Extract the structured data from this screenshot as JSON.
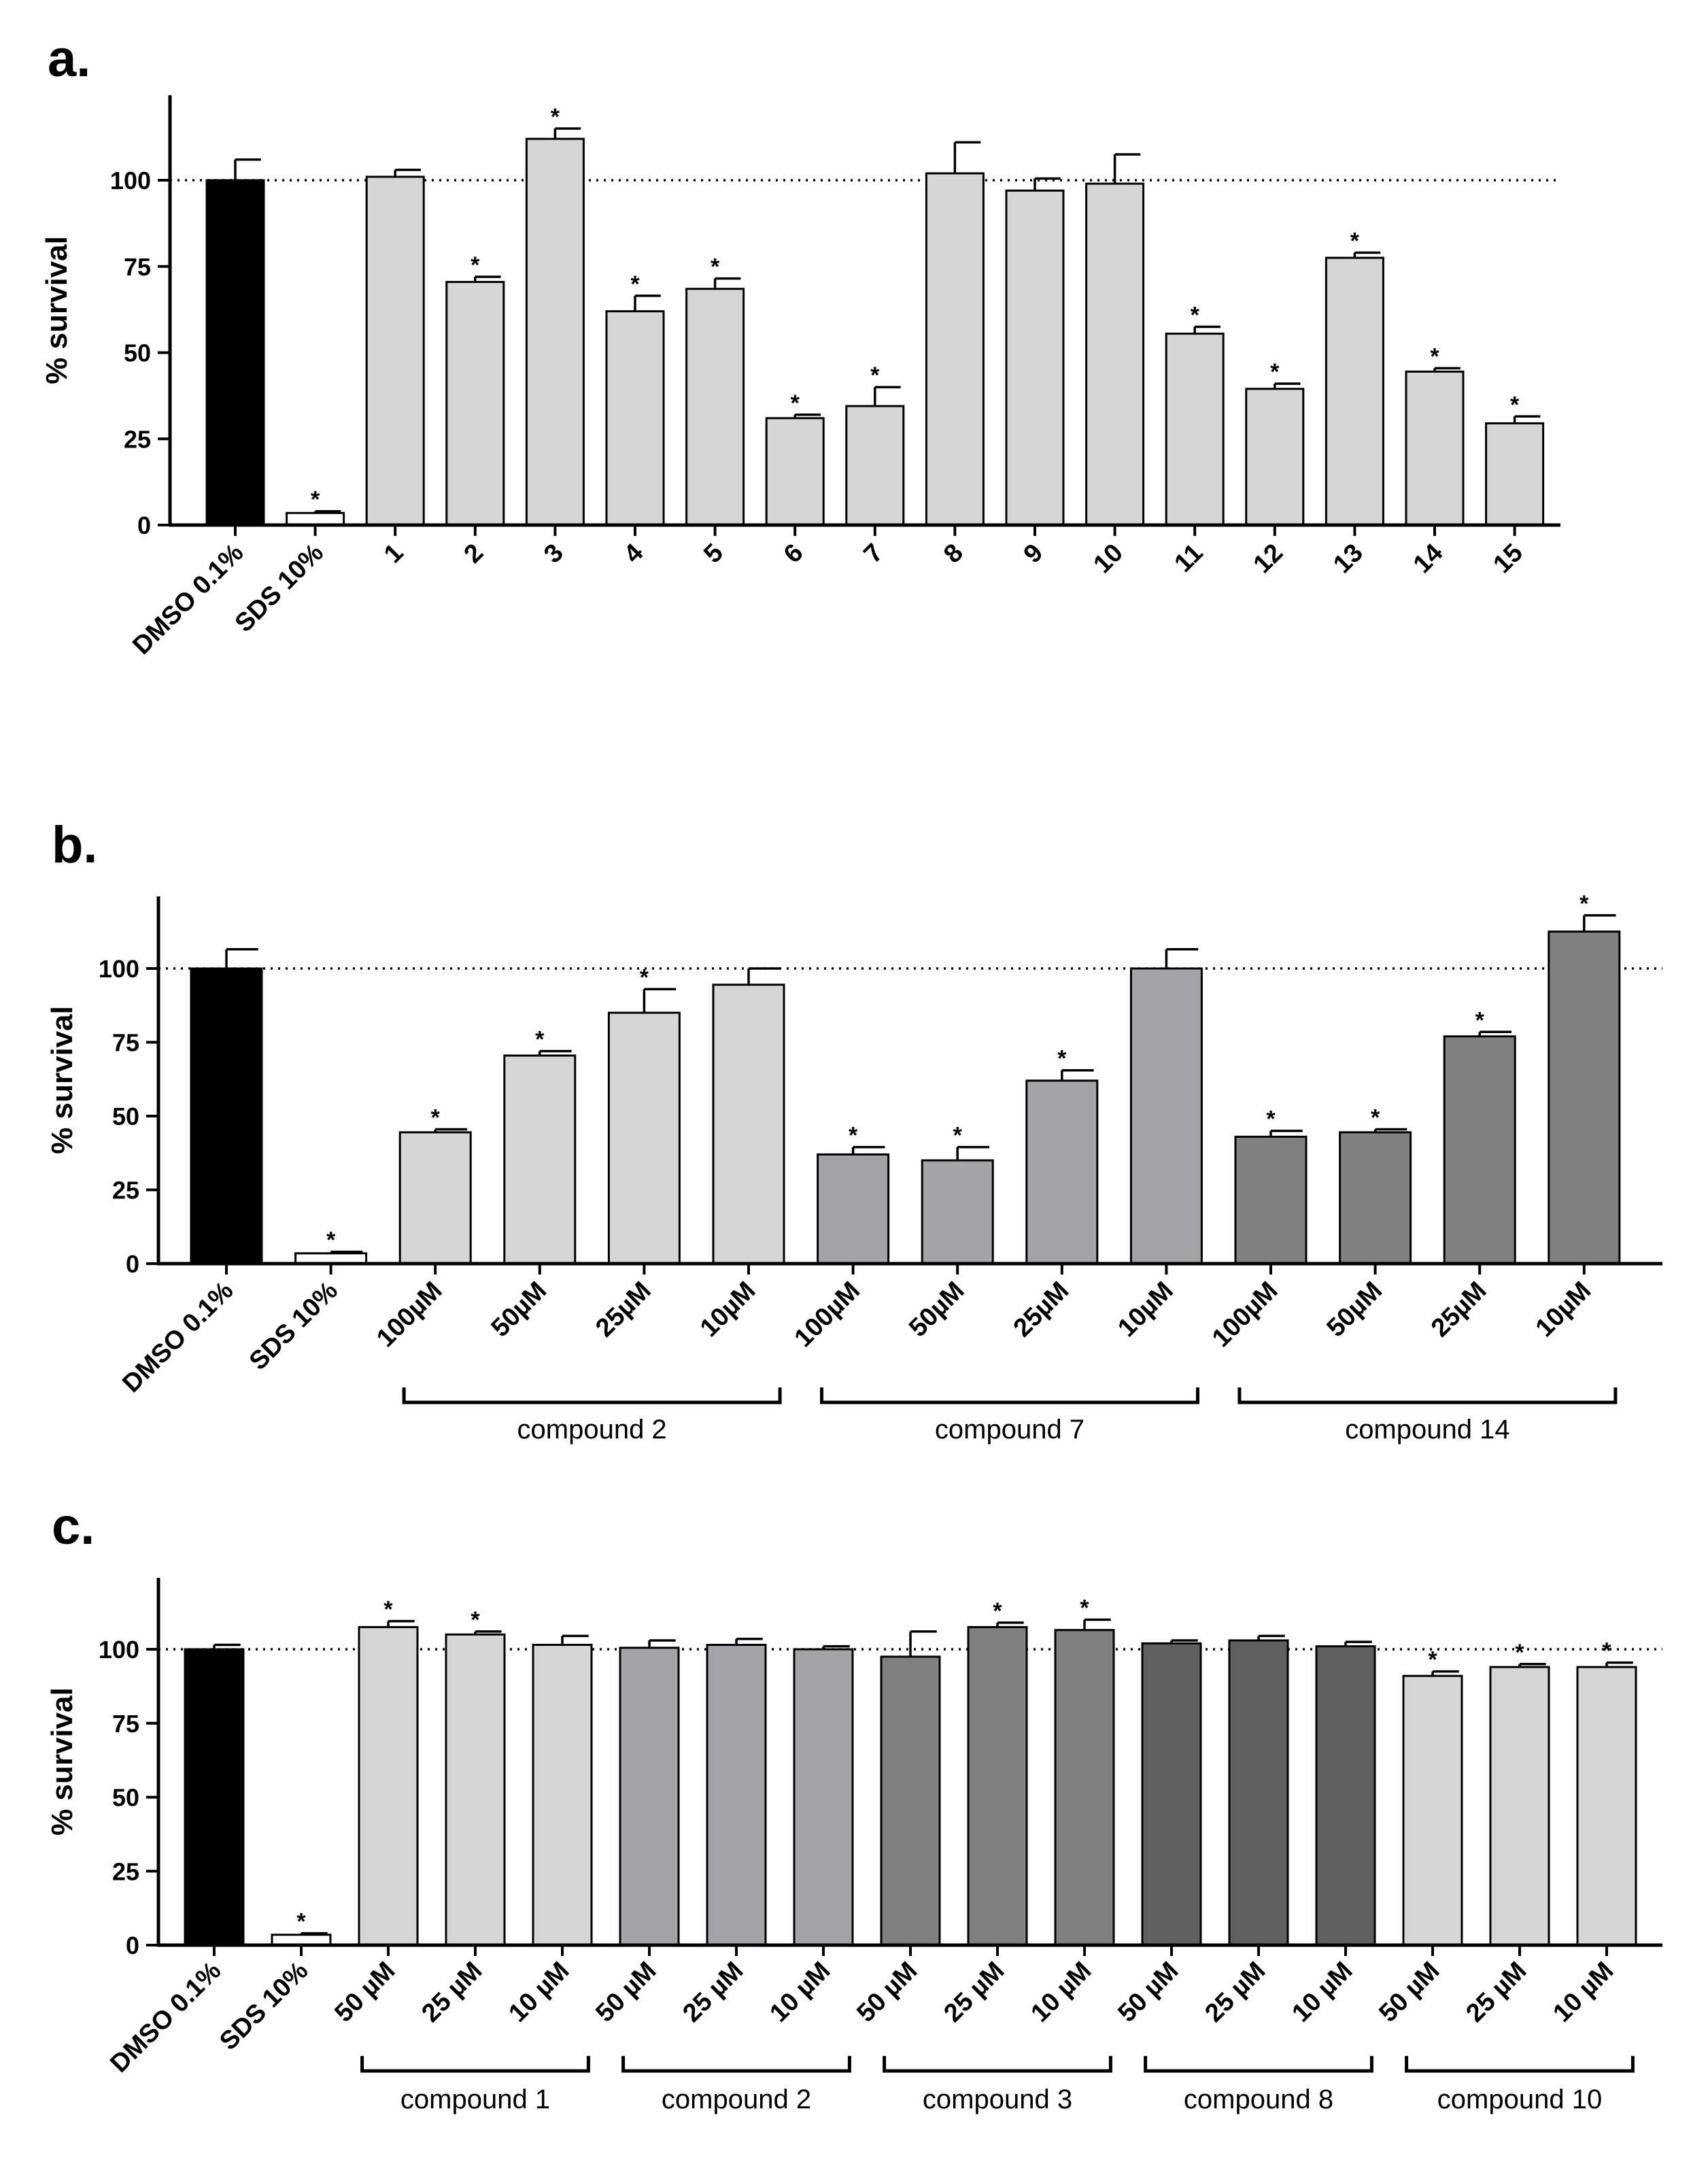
{
  "colors": {
    "black": "#000000",
    "white": "#ffffff",
    "light": "#d6d6d6",
    "mid": "#a4a4a8",
    "dark": "#808080",
    "darker": "#606060"
  },
  "chart_data": [
    {
      "panel": "a.",
      "type": "bar",
      "ylabel": "% survival",
      "ylim": [
        0,
        125
      ],
      "yticks": [
        0,
        25,
        50,
        75,
        100
      ],
      "reference_line": 100,
      "categories": [
        "DMSO 0.1%",
        "SDS 10%",
        "1",
        "2",
        "3",
        "4",
        "5",
        "6",
        "7",
        "8",
        "9",
        "10",
        "11",
        "12",
        "13",
        "14",
        "15"
      ],
      "values": [
        100,
        3.5,
        101,
        70.5,
        112,
        62,
        68.5,
        31,
        34.5,
        102,
        97,
        99,
        55.5,
        39.5,
        77.5,
        44.5,
        29.5
      ],
      "errors": [
        6,
        0.5,
        2,
        1.5,
        3,
        4.5,
        3,
        1,
        5.5,
        9,
        3.5,
        8.5,
        2,
        1.5,
        1.5,
        1,
        2
      ],
      "significant": [
        false,
        true,
        false,
        true,
        true,
        true,
        true,
        true,
        true,
        false,
        false,
        false,
        true,
        true,
        true,
        true,
        true
      ],
      "bar_colors": [
        "black",
        "white",
        "light",
        "light",
        "light",
        "light",
        "light",
        "light",
        "light",
        "light",
        "light",
        "light",
        "light",
        "light",
        "light",
        "light",
        "light"
      ],
      "groups": []
    },
    {
      "panel": "b.",
      "type": "bar",
      "ylabel": "% survival",
      "ylim": [
        0,
        125
      ],
      "yticks": [
        0,
        25,
        50,
        75,
        100
      ],
      "reference_line": 100,
      "categories": [
        "DMSO 0.1%",
        "SDS 10%",
        "100µM",
        "50µM",
        "25µM",
        "10µM",
        "100µM",
        "50µM",
        "25µM",
        "10µM",
        "100µM",
        "50µM",
        "25µM",
        "10µM"
      ],
      "values": [
        100,
        3.5,
        44.5,
        70.5,
        85,
        94.5,
        37,
        35,
        62,
        100,
        43,
        44.5,
        77,
        112.5
      ],
      "errors": [
        6.5,
        0.5,
        1,
        1.5,
        8,
        5.5,
        2.5,
        4.5,
        3.5,
        6.5,
        2,
        1,
        1.5,
        5.5
      ],
      "significant": [
        false,
        true,
        true,
        true,
        true,
        false,
        true,
        true,
        true,
        false,
        true,
        true,
        true,
        true
      ],
      "bar_colors": [
        "black",
        "white",
        "light",
        "light",
        "light",
        "light",
        "mid",
        "mid",
        "mid",
        "mid",
        "dark",
        "dark",
        "dark",
        "dark"
      ],
      "groups": [
        {
          "label": "compound 2",
          "from": 2,
          "to": 5
        },
        {
          "label": "compound 7",
          "from": 6,
          "to": 9
        },
        {
          "label": "compound 14",
          "from": 10,
          "to": 13
        }
      ]
    },
    {
      "panel": "c.",
      "type": "bar",
      "ylabel": "% survival",
      "ylim": [
        0,
        125
      ],
      "yticks": [
        0,
        25,
        50,
        75,
        100
      ],
      "reference_line": 100,
      "categories": [
        "DMSO 0.1%",
        "SDS 10%",
        "50 µM",
        "25 µM",
        "10 µM",
        "50 µM",
        "25 µM",
        "10 µM",
        "50 µM",
        "25 µM",
        "10 µM",
        "50 µM",
        "25 µM",
        "10 µM",
        "50 µM",
        "25 µM",
        "10 µM"
      ],
      "values": [
        100,
        3.5,
        107.5,
        105,
        101.5,
        100.5,
        101.5,
        100,
        97.5,
        107.5,
        106.5,
        102,
        103,
        101,
        91,
        94,
        94
      ],
      "errors": [
        1.5,
        0.5,
        2,
        1,
        3,
        2.5,
        2,
        1,
        8.5,
        1.5,
        3.5,
        1,
        1.5,
        1.5,
        1.5,
        1,
        1.5
      ],
      "significant": [
        false,
        true,
        true,
        true,
        false,
        false,
        false,
        false,
        false,
        true,
        true,
        false,
        false,
        false,
        true,
        true,
        true
      ],
      "bar_colors": [
        "black",
        "white",
        "light",
        "light",
        "light",
        "mid",
        "mid",
        "mid",
        "dark",
        "dark",
        "dark",
        "darker",
        "darker",
        "darker",
        "light",
        "light",
        "light"
      ],
      "groups": [
        {
          "label": "compound 1",
          "from": 2,
          "to": 4
        },
        {
          "label": "compound 2",
          "from": 5,
          "to": 7
        },
        {
          "label": "compound 3",
          "from": 8,
          "to": 10
        },
        {
          "label": "compound 8",
          "from": 11,
          "to": 13
        },
        {
          "label": "compound 10",
          "from": 14,
          "to": 16
        }
      ]
    }
  ]
}
